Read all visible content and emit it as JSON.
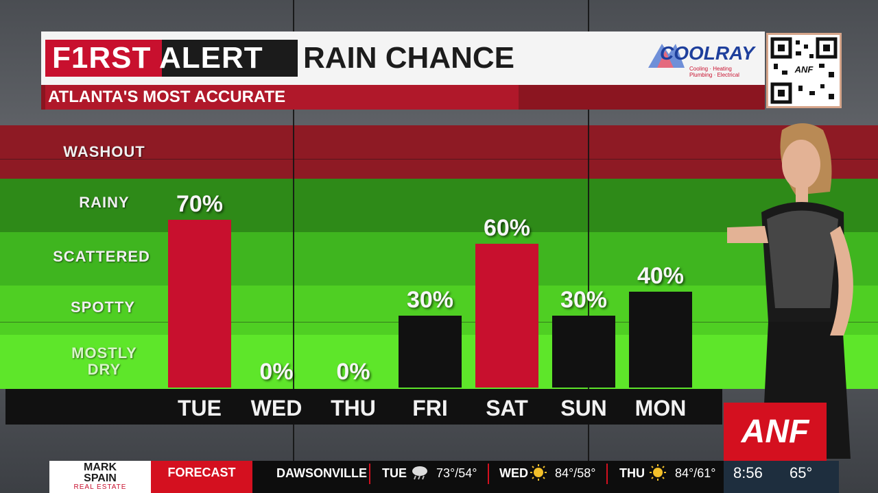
{
  "header": {
    "first_alert": "F1RST ALERT",
    "title": "RAIN CHANCE",
    "subtitle": "ATLANTA'S MOST ACCURATE",
    "sponsor_logo": "COOLRAY",
    "sponsor_tagline": "Cooling · Heating Plumbing · Electrical",
    "qr_label": "ANF"
  },
  "categories_scale": [
    "WASHOUT",
    "RAINY",
    "SCATTERED",
    "SPOTTY",
    "MOSTLY DRY"
  ],
  "chart_data": {
    "type": "bar",
    "title": "RAIN CHANCE",
    "categories": [
      "TUE",
      "WED",
      "THU",
      "FRI",
      "SAT",
      "SUN",
      "MON"
    ],
    "values": [
      70,
      0,
      0,
      30,
      60,
      30,
      40
    ],
    "labels": [
      "70%",
      "0%",
      "0%",
      "30%",
      "60%",
      "30%",
      "40%"
    ],
    "bar_colors": [
      "#c8102e",
      "#111111",
      "#111111",
      "#111111",
      "#c8102e",
      "#111111",
      "#111111"
    ],
    "ylim": [
      0,
      100
    ],
    "band_colors": {
      "washout": "#8e1a24",
      "rainy": "#2e8a18",
      "scattered": "#3fb51f",
      "spotty": "#4fcf23",
      "mostly_dry": "#5ee62a"
    }
  },
  "brand": {
    "logo": "ANF"
  },
  "ticker": {
    "sponsor_top": "MARK SPAIN",
    "sponsor_bottom": "REAL ESTATE",
    "forecast_label": "FORECAST",
    "city": "DAWSONVILLE",
    "days": [
      {
        "day": "TUE",
        "icon": "rain-cloud-icon",
        "temps": "73°/54°"
      },
      {
        "day": "WED",
        "icon": "sun-icon",
        "temps": "84°/58°"
      },
      {
        "day": "THU",
        "icon": "sun-icon",
        "temps": "84°/61°"
      }
    ],
    "time": "8:56",
    "temp": "65°"
  }
}
